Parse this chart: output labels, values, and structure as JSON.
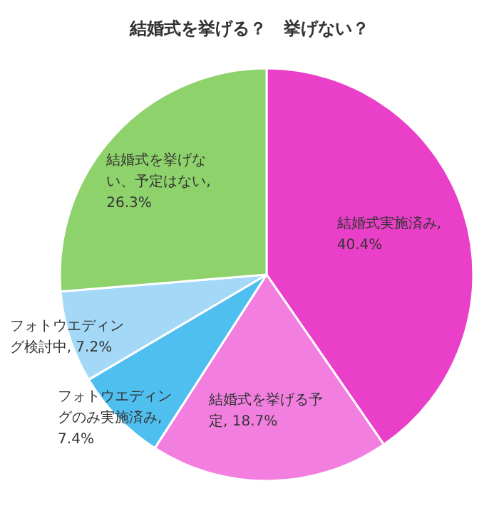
{
  "chart_data": {
    "type": "pie",
    "title": "結婚式を挙げる？　挙げない？",
    "categories": [
      "結婚式実施済み",
      "結婚式を挙げる予定",
      "フォトウエディングのみ実施済み",
      "フォトウエディング検討中",
      "結婚式を挙げない、予定はない"
    ],
    "values": [
      40.4,
      18.7,
      7.4,
      7.2,
      26.3
    ],
    "colors": [
      "#ea3fc8",
      "#f27fe0",
      "#4fbfef",
      "#a3d9f7",
      "#8ed26b"
    ],
    "value_labels": [
      ", 40.4%",
      ", 18.7%",
      ", 7.4%",
      ", 7.2%",
      ", 26.3%"
    ]
  }
}
